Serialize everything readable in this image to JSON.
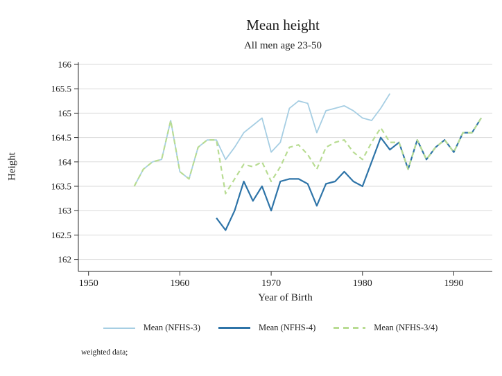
{
  "title": "Mean height",
  "subtitle": "All men age 23-50",
  "footnote": "weighted data;",
  "axes": {
    "x_label": "Year of Birth",
    "y_label": "Height"
  },
  "legend": {
    "items": [
      {
        "label": "Mean (NFHS-3)"
      },
      {
        "label": "Mean (NFHS-4)"
      },
      {
        "label": "Mean (NFHS-3/4)"
      }
    ]
  },
  "colors": {
    "grid": "#d9d9d9",
    "axis": "#2b2b2b",
    "text": "#1a1a1a",
    "background": "#ffffff"
  },
  "chart_data": {
    "type": "line",
    "title": "Mean height",
    "subtitle": "All men age 23-50",
    "xlabel": "Year of Birth",
    "ylabel": "Height",
    "xlim": [
      1948.9,
      1994.2
    ],
    "ylim": [
      161.75,
      166.05
    ],
    "x_ticks": [
      1950,
      1960,
      1970,
      1980,
      1990
    ],
    "y_ticks": [
      162,
      162.5,
      163,
      163.5,
      164,
      164.5,
      165,
      165.5,
      166
    ],
    "grid": "horizontal",
    "legend_position": "bottom",
    "note": "weighted data;",
    "series": [
      {
        "name": "Mean (NFHS-3)",
        "color": "#a6cee3",
        "style": "solid",
        "x": [
          1955,
          1956,
          1957,
          1958,
          1959,
          1960,
          1961,
          1962,
          1963,
          1964,
          1965,
          1966,
          1967,
          1968,
          1969,
          1970,
          1971,
          1972,
          1973,
          1974,
          1975,
          1976,
          1977,
          1978,
          1979,
          1980,
          1981,
          1982,
          1983
        ],
        "y": [
          163.5,
          163.85,
          164.0,
          164.05,
          164.85,
          163.8,
          163.65,
          164.3,
          164.45,
          164.45,
          164.05,
          164.3,
          164.6,
          164.75,
          164.9,
          164.2,
          164.4,
          165.1,
          165.25,
          165.2,
          164.6,
          165.05,
          165.1,
          165.15,
          165.05,
          164.9,
          164.85,
          165.1,
          165.4
        ]
      },
      {
        "name": "Mean (NFHS-4)",
        "color": "#2e74a8",
        "style": "solid",
        "x": [
          1964,
          1965,
          1966,
          1967,
          1968,
          1969,
          1970,
          1971,
          1972,
          1973,
          1974,
          1975,
          1976,
          1977,
          1978,
          1979,
          1980,
          1981,
          1982,
          1983,
          1984,
          1985,
          1986,
          1987,
          1988,
          1989,
          1990,
          1991,
          1992,
          1993
        ],
        "y": [
          162.85,
          162.6,
          163.0,
          163.6,
          163.2,
          163.5,
          163.0,
          163.6,
          163.65,
          163.65,
          163.55,
          163.1,
          163.55,
          163.6,
          163.8,
          163.6,
          163.5,
          164.0,
          164.5,
          164.25,
          164.4,
          163.85,
          164.45,
          164.05,
          164.3,
          164.45,
          164.2,
          164.6,
          164.6,
          164.9
        ]
      },
      {
        "name": "Mean (NFHS-3/4)",
        "color": "#b8dc92",
        "style": "dashed",
        "x": [
          1955,
          1956,
          1957,
          1958,
          1959,
          1960,
          1961,
          1962,
          1963,
          1964,
          1965,
          1966,
          1967,
          1968,
          1969,
          1970,
          1971,
          1972,
          1973,
          1974,
          1975,
          1976,
          1977,
          1978,
          1979,
          1980,
          1981,
          1982,
          1983,
          1984,
          1985,
          1986,
          1987,
          1988,
          1989,
          1990,
          1991,
          1992,
          1993
        ],
        "y": [
          163.5,
          163.85,
          164.0,
          164.05,
          164.85,
          163.8,
          163.65,
          164.3,
          164.45,
          164.45,
          163.35,
          163.65,
          163.95,
          163.9,
          164.0,
          163.6,
          163.9,
          164.3,
          164.35,
          164.15,
          163.85,
          164.3,
          164.4,
          164.45,
          164.2,
          164.05,
          164.4,
          164.7,
          164.4,
          164.4,
          163.85,
          164.45,
          164.05,
          164.3,
          164.45,
          164.2,
          164.6,
          164.6,
          164.9
        ]
      }
    ]
  }
}
